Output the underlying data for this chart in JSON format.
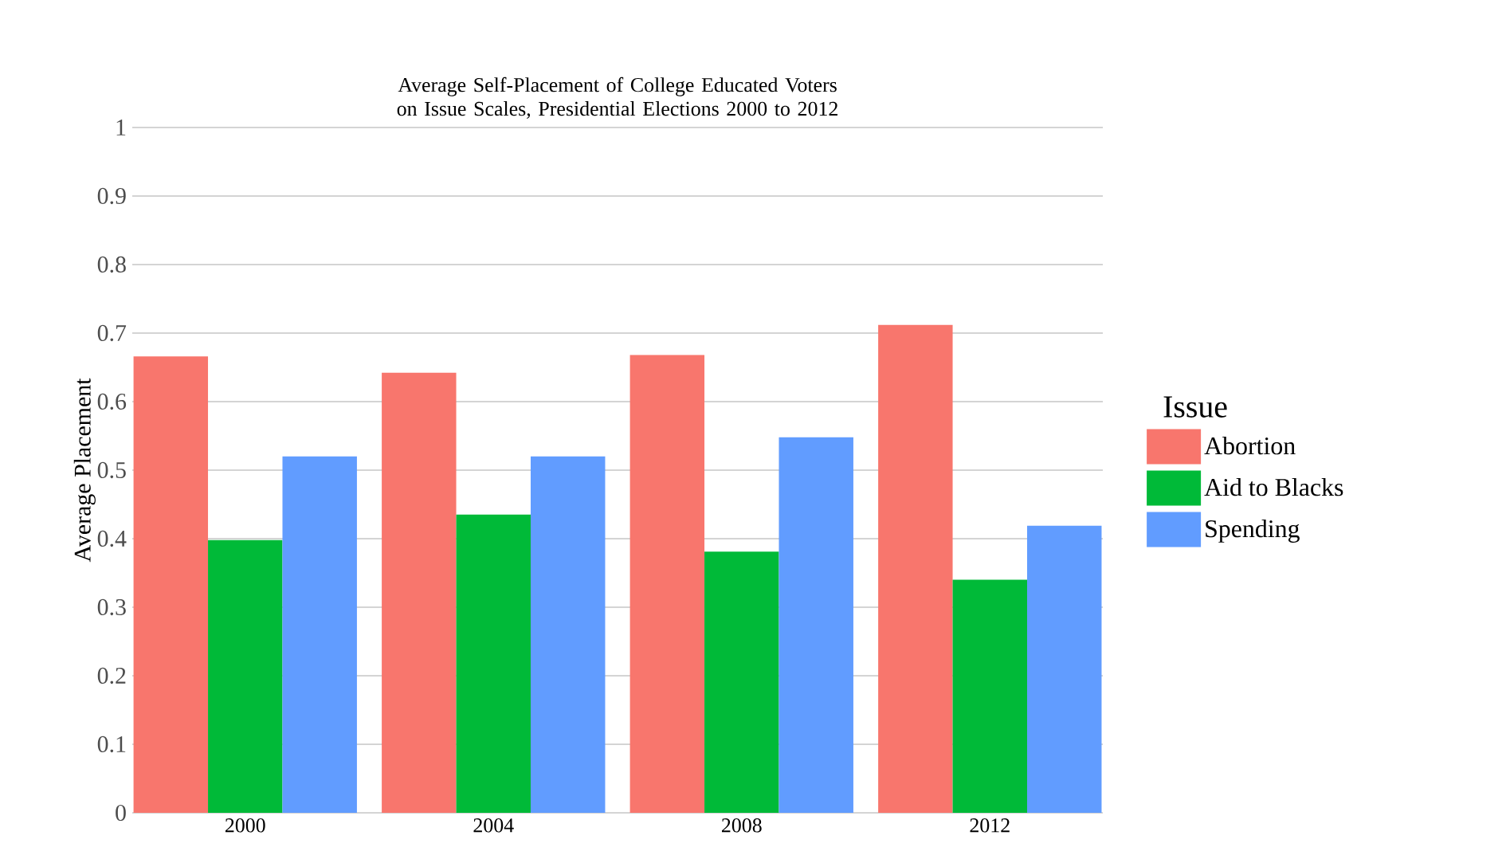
{
  "chart_data": {
    "type": "bar",
    "title": "Average Self-Placement of College Educated Voters on Issue Scales, Presidential Elections 2000 to 2012",
    "ylabel": "Average Placement",
    "legend_title": "Issue",
    "categories": [
      "2000",
      "2004",
      "2008",
      "2012"
    ],
    "series": [
      {
        "name": "Abortion",
        "color": "#f8766d",
        "values": [
          0.666,
          0.642,
          0.668,
          0.712
        ]
      },
      {
        "name": "Aid to Blacks",
        "color": "#00ba38",
        "values": [
          0.398,
          0.435,
          0.381,
          0.34
        ]
      },
      {
        "name": "Spending",
        "color": "#619cff",
        "values": [
          0.52,
          0.52,
          0.548,
          0.419
        ]
      }
    ],
    "ylim": [
      0,
      1
    ],
    "yticks": [
      0,
      0.1,
      0.2,
      0.3,
      0.4,
      0.5,
      0.6,
      0.7,
      0.8,
      0.9,
      1
    ],
    "grid": "y",
    "legend": "right"
  }
}
